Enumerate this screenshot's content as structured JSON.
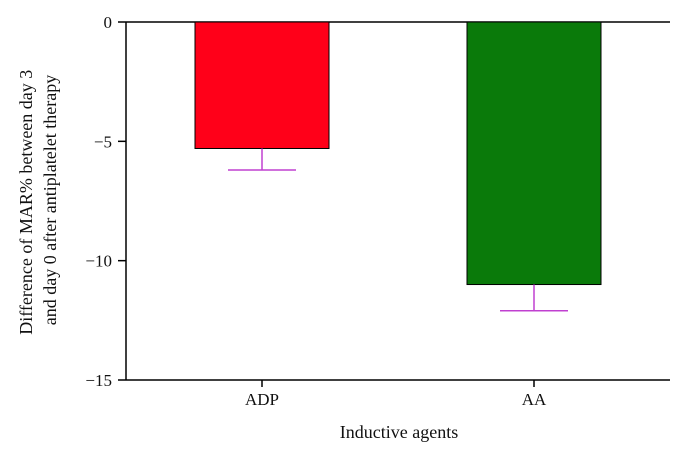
{
  "chart_data": {
    "type": "bar",
    "title": "",
    "xlabel": "Inductive agents",
    "ylabel_lines": [
      "Difference of MAR% between day 3",
      "and day 0 after antiplatelet therapy"
    ],
    "categories": [
      "ADP",
      "AA"
    ],
    "values": [
      -5.3,
      -11.0
    ],
    "error_bars": [
      0.9,
      1.1
    ],
    "ylim": [
      -15,
      0
    ],
    "yticks": [
      0,
      -5,
      -10,
      -15
    ],
    "ytick_labels": [
      "0",
      "−5",
      "−10",
      "−15"
    ],
    "bar_colors": [
      "#ff0019",
      "#0a7a0a"
    ],
    "error_bar_color": "#c040d0",
    "grid": false,
    "legend": "none"
  }
}
